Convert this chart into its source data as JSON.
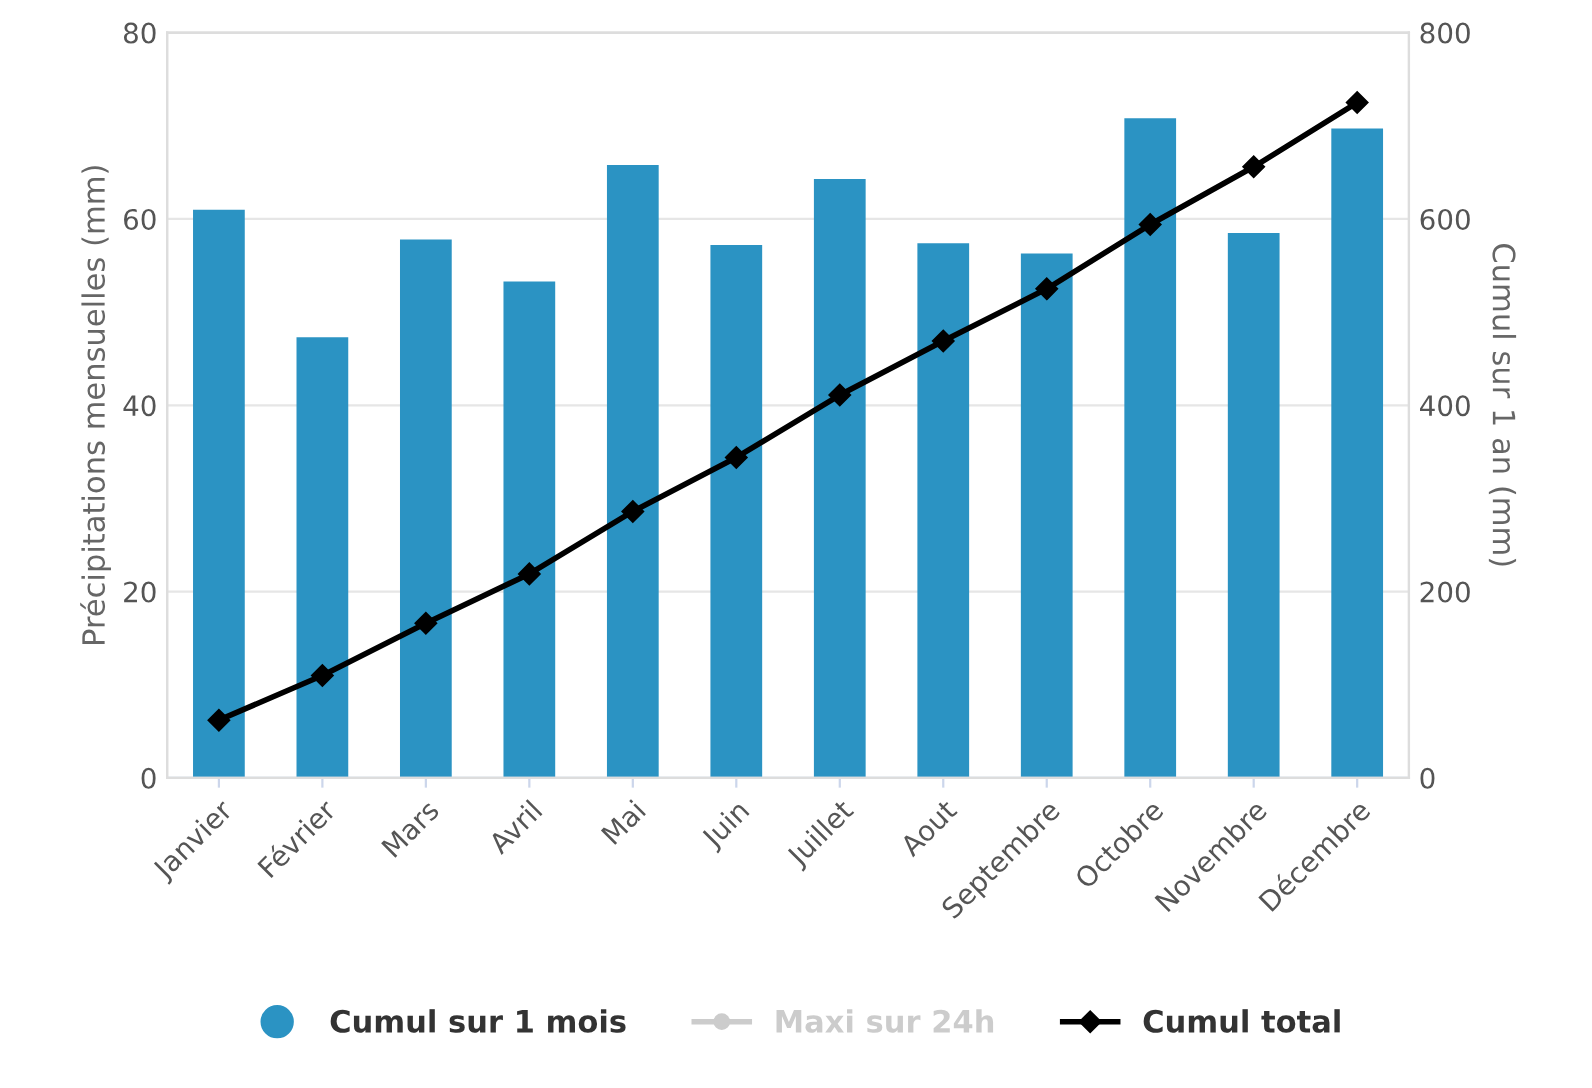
{
  "chart_data": {
    "type": "bar",
    "ylabel": "Précipitations mensuelles (mm)",
    "y2label": "Cumul sur 1 an (mm)",
    "categories": [
      "Janvier",
      "Février",
      "Mars",
      "Avril",
      "Mai",
      "Juin",
      "Juillet",
      "Aout",
      "Septembre",
      "Octobre",
      "Novembre",
      "Décembre"
    ],
    "series": [
      {
        "name": "Cumul sur 1 mois",
        "color": "#2b93c3",
        "values": [
          61,
          47.3,
          57.8,
          53.3,
          65.8,
          57.2,
          64.3,
          57.4,
          56.3,
          70.8,
          58.5,
          69.7
        ]
      },
      {
        "name": "Maxi sur 24h",
        "type": "line",
        "color": "#cccccc",
        "marker": "circle",
        "values": [
          null,
          null,
          null,
          null,
          null,
          null,
          null,
          null,
          null,
          null,
          null,
          null
        ]
      },
      {
        "name": "Cumul total",
        "type": "line",
        "axis": "y2",
        "color": "#000000",
        "marker": "diamond",
        "values": [
          62,
          110,
          166,
          219,
          286,
          344,
          411,
          469,
          525,
          594,
          656,
          725
        ]
      }
    ],
    "ylim": [
      0,
      80
    ],
    "yticks": [
      0,
      20,
      40,
      60,
      80
    ],
    "y2lim": [
      0,
      800
    ],
    "y2ticks": [
      0,
      200,
      400,
      600,
      800
    ],
    "grid": "y",
    "legend": "bottom"
  }
}
